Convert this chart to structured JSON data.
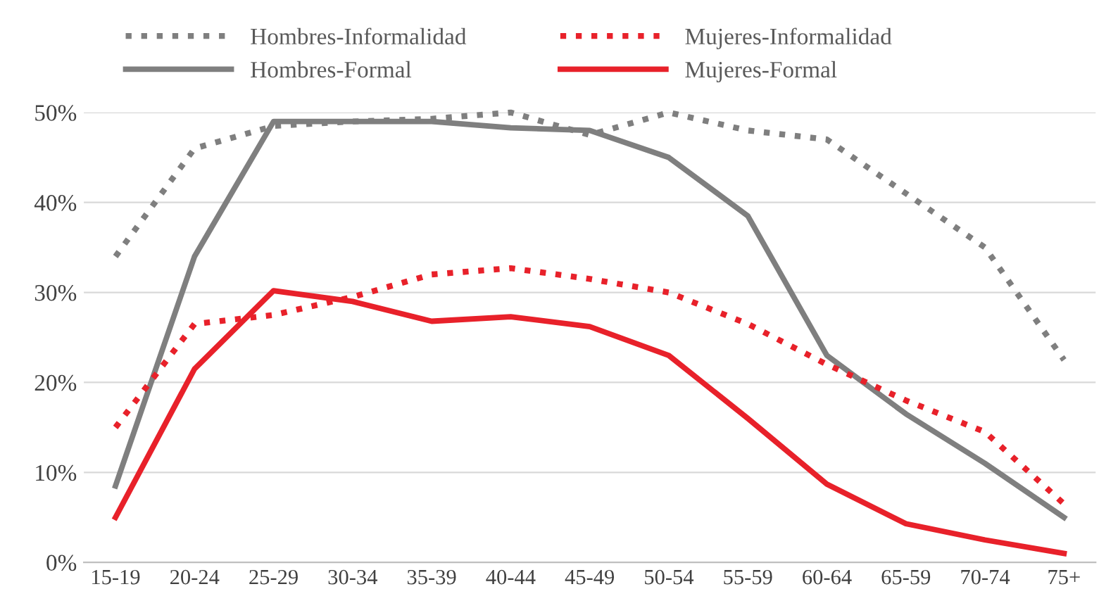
{
  "chart_data": {
    "type": "line",
    "categories": [
      "15-19",
      "20-24",
      "25-29",
      "30-34",
      "35-39",
      "40-44",
      "45-49",
      "50-54",
      "55-59",
      "60-64",
      "65-59",
      "70-74",
      "75+"
    ],
    "series": [
      {
        "name": "Hombres-Informalidad",
        "color": "#7f7f7f",
        "line_style": "dotted",
        "values": [
          34,
          46,
          48.5,
          49,
          49.3,
          50,
          47.5,
          50,
          48,
          47,
          41,
          35,
          22.5
        ]
      },
      {
        "name": "Hombres-Formal",
        "color": "#7f7f7f",
        "line_style": "solid",
        "values": [
          8.5,
          34,
          49,
          49,
          49,
          48.3,
          48,
          45,
          38.5,
          23,
          16.5,
          11,
          5
        ]
      },
      {
        "name": "Mujeres-Informalidad",
        "color": "#e8212a",
        "line_style": "dotted",
        "values": [
          15,
          26.5,
          27.5,
          29.5,
          32,
          32.7,
          31.5,
          30,
          26.5,
          22,
          18,
          14.5,
          6.5
        ]
      },
      {
        "name": "Mujeres-Formal",
        "color": "#e8212a",
        "line_style": "solid",
        "values": [
          5,
          21.5,
          30.2,
          29,
          26.8,
          27.3,
          26.2,
          23,
          16,
          8.7,
          4.3,
          2.5,
          1
        ]
      }
    ],
    "ylim": [
      0,
      50
    ],
    "yticks": [
      {
        "value": 0,
        "label": "0%"
      },
      {
        "value": 10,
        "label": "10%"
      },
      {
        "value": 20,
        "label": "20%"
      },
      {
        "value": 30,
        "label": "30%"
      },
      {
        "value": 40,
        "label": "40%"
      },
      {
        "value": 50,
        "label": "50%"
      }
    ],
    "grid": "y",
    "legend": "top",
    "marker": "none"
  }
}
